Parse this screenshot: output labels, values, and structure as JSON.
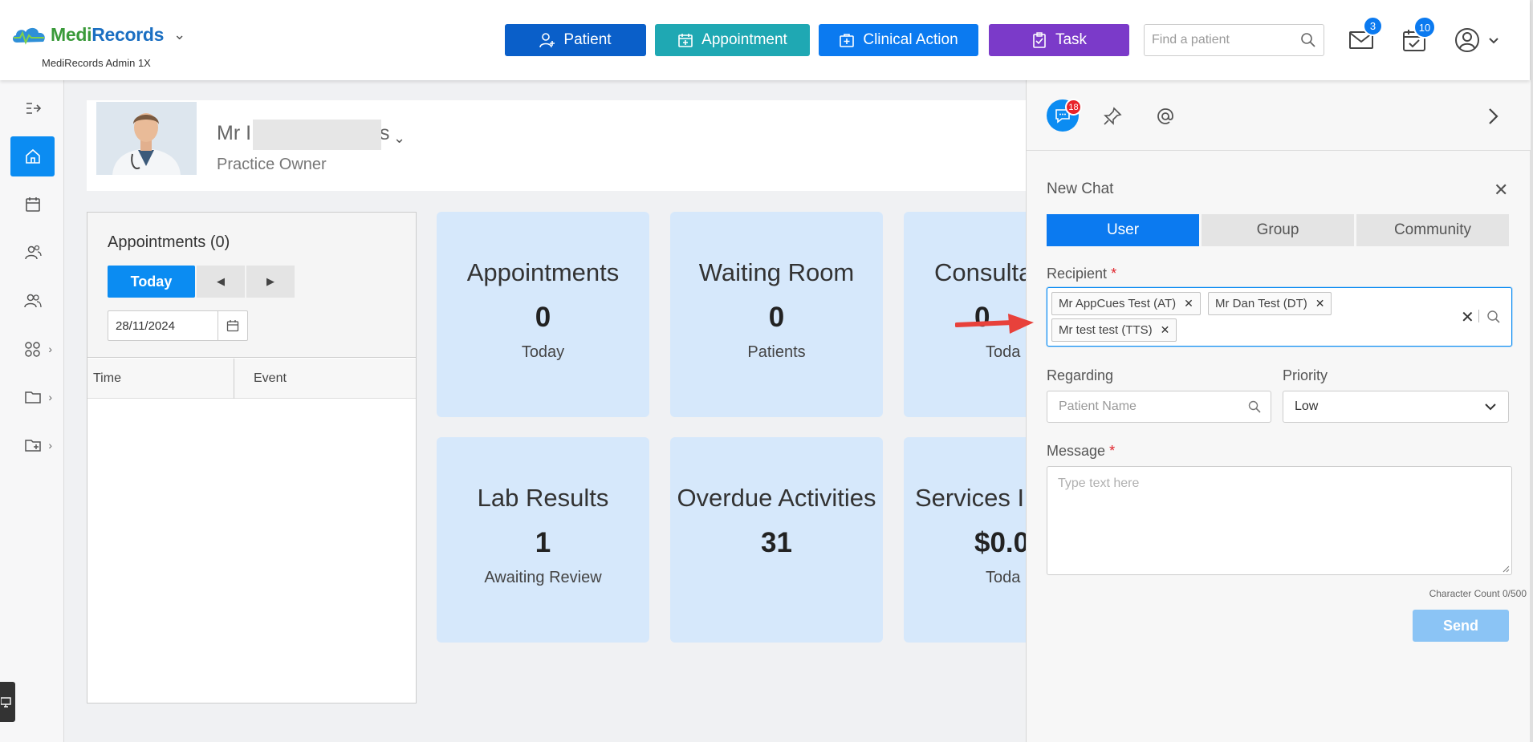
{
  "header": {
    "brand_medi": "Medi",
    "brand_records": "Records",
    "brand_sub": "MediRecords Admin 1X",
    "buttons": {
      "patient": "Patient",
      "appointment": "Appointment",
      "clinical_action": "Clinical Action",
      "task": "Task"
    },
    "button_colors": {
      "patient": "#0a5fc9",
      "appointment": "#1fa8b3",
      "clinical_action": "#0b7af0",
      "task": "#7b3ac9"
    },
    "search_placeholder": "Find a patient",
    "mail_badge": "3",
    "tasks_badge": "10"
  },
  "sidebar": {
    "items": [
      {
        "icon": "collapse-menu-icon"
      },
      {
        "icon": "home-icon",
        "active": true
      },
      {
        "icon": "calendar-icon"
      },
      {
        "icon": "patients-icon"
      },
      {
        "icon": "users-icon"
      },
      {
        "icon": "apps-icon",
        "has_submenu": true
      },
      {
        "icon": "folder-icon",
        "has_submenu": true
      },
      {
        "icon": "add-folder-icon",
        "has_submenu": true
      }
    ]
  },
  "profile": {
    "name_prefix": "Mr I",
    "name_suffix": "s",
    "role": "Practice Owner"
  },
  "appointments": {
    "title": "Appointments (0)",
    "today_label": "Today",
    "date": "28/11/2024",
    "columns": [
      "Time",
      "Event"
    ]
  },
  "tiles": [
    {
      "title": "Appointments",
      "value": "0",
      "sub": "Today"
    },
    {
      "title": "Waiting Room",
      "value": "0",
      "sub": "Patients"
    },
    {
      "title": "Consulta",
      "value": "0",
      "sub": "Toda"
    },
    {
      "title": "Lab Results",
      "value": "1",
      "sub": "Awaiting Review"
    },
    {
      "title": "Overdue Activities",
      "value": "31",
      "sub": ""
    },
    {
      "title": "Services In",
      "value": "$0.0",
      "sub": "Toda"
    }
  ],
  "chat": {
    "unread_badge": "18",
    "title": "New Chat",
    "tabs": [
      "User",
      "Group",
      "Community"
    ],
    "active_tab": "User",
    "recipient_label": "Recipient",
    "recipients": [
      "Mr AppCues Test (AT)",
      "Mr Dan Test (DT)",
      "Mr test test (TTS)"
    ],
    "regarding_label": "Regarding",
    "regarding_placeholder": "Patient Name",
    "priority_label": "Priority",
    "priority_value": "Low",
    "message_label": "Message",
    "message_placeholder": "Type text here",
    "char_count": "Character Count 0/500",
    "send_label": "Send",
    "required_mark": "*"
  }
}
